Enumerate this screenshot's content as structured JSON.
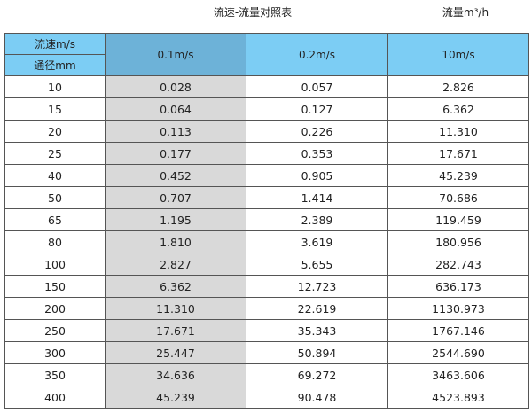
{
  "title": "流速-流量对照表",
  "unit_label": "流量m³/h",
  "colors": {
    "header": "#7ccdf4",
    "header_selected": "#6db2d8",
    "highlight_column": "#d9d9d9"
  },
  "table": {
    "corner_top": "流速m/s",
    "corner_bottom": "通径mm",
    "columns": [
      "0.1m/s",
      "0.2m/s",
      "10m/s"
    ],
    "rows": [
      [
        "10",
        "0.028",
        "0.057",
        "2.826"
      ],
      [
        "15",
        "0.064",
        "0.127",
        "6.362"
      ],
      [
        "20",
        "0.113",
        "0.226",
        "11.310"
      ],
      [
        "25",
        "0.177",
        "0.353",
        "17.671"
      ],
      [
        "40",
        "0.452",
        "0.905",
        "45.239"
      ],
      [
        "50",
        "0.707",
        "1.414",
        "70.686"
      ],
      [
        "65",
        "1.195",
        "2.389",
        "119.459"
      ],
      [
        "80",
        "1.810",
        "3.619",
        "180.956"
      ],
      [
        "100",
        "2.827",
        "5.655",
        "282.743"
      ],
      [
        "150",
        "6.362",
        "12.723",
        "636.173"
      ],
      [
        "200",
        "11.310",
        "22.619",
        "1130.973"
      ],
      [
        "250",
        "17.671",
        "35.343",
        "1767.146"
      ],
      [
        "300",
        "25.447",
        "50.894",
        "2544.690"
      ],
      [
        "350",
        "34.636",
        "69.272",
        "3463.606"
      ],
      [
        "400",
        "45.239",
        "90.478",
        "4523.893"
      ]
    ]
  }
}
